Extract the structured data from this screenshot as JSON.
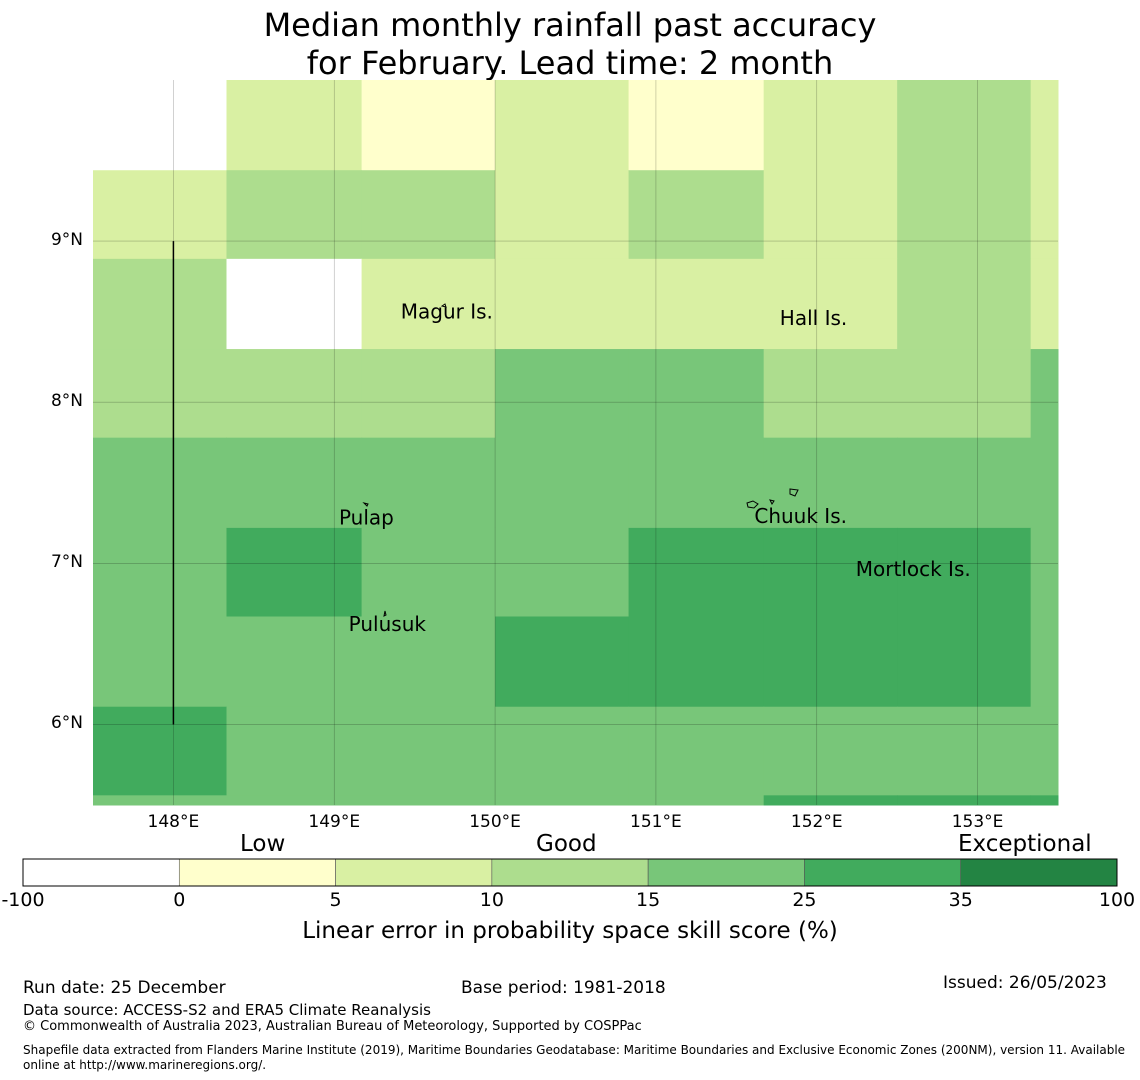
{
  "title": {
    "line1": "Median monthly rainfall past accuracy",
    "line2": "for February. Lead time: 2 month"
  },
  "map": {
    "lon_range": [
      147.5,
      153.5
    ],
    "lat_range": [
      5.5,
      10.0
    ],
    "lat_ticks": [
      {
        "lat": 9,
        "label": "9°N"
      },
      {
        "lat": 8,
        "label": "8°N"
      },
      {
        "lat": 7,
        "label": "7°N"
      },
      {
        "lat": 6,
        "label": "6°N"
      }
    ],
    "lon_ticks": [
      {
        "lon": 148,
        "label": "148°E"
      },
      {
        "lon": 149,
        "label": "149°E"
      },
      {
        "lon": 150,
        "label": "150°E"
      },
      {
        "lon": 151,
        "label": "151°E"
      },
      {
        "lon": 152,
        "label": "152°E"
      },
      {
        "lon": 153,
        "label": "153°E"
      }
    ],
    "cell_lon_edges": [
      147.5,
      148.33,
      149.17,
      150.0,
      150.83,
      151.67,
      152.5,
      153.33,
      153.5
    ],
    "cell_lat_edges": [
      10.0,
      9.44,
      8.89,
      8.33,
      7.78,
      7.22,
      6.67,
      6.11,
      5.56,
      5.5
    ],
    "grid_classes": [
      [
        0,
        2,
        1,
        2,
        1,
        2,
        3,
        2
      ],
      [
        2,
        3,
        3,
        2,
        3,
        2,
        3,
        2
      ],
      [
        3,
        0,
        2,
        2,
        2,
        2,
        3,
        2
      ],
      [
        3,
        3,
        3,
        4,
        4,
        3,
        3,
        4
      ],
      [
        4,
        4,
        4,
        4,
        4,
        4,
        4,
        4
      ],
      [
        4,
        5,
        4,
        4,
        5,
        5,
        5,
        4
      ],
      [
        4,
        4,
        4,
        5,
        5,
        5,
        5,
        4
      ],
      [
        5,
        4,
        4,
        4,
        4,
        4,
        4,
        4
      ],
      [
        4,
        4,
        4,
        4,
        4,
        5,
        5,
        5
      ]
    ],
    "vertical_line": {
      "lon": 148.0,
      "lat_from": 6.0,
      "lat_to": 9.0
    },
    "places": [
      {
        "name": "Magur Is.",
        "lon": 149.7,
        "lat": 8.52
      },
      {
        "name": "Hall Is.",
        "lon": 151.98,
        "lat": 8.48
      },
      {
        "name": "Pulap",
        "lon": 149.2,
        "lat": 7.24
      },
      {
        "name": "Chuuk Is.",
        "lon": 151.9,
        "lat": 7.25
      },
      {
        "name": "Mortlock Is.",
        "lon": 152.6,
        "lat": 6.92
      },
      {
        "name": "Pulusuk",
        "lon": 149.33,
        "lat": 6.58
      }
    ]
  },
  "colorbar": {
    "categories": [
      "Low",
      "Good",
      "Exceptional"
    ],
    "ticks": [
      "-100",
      "0",
      "5",
      "10",
      "15",
      "25",
      "35",
      "100"
    ],
    "colors": [
      "#ffffff",
      "#ffffcc",
      "#d9f0a3",
      "#addd8e",
      "#78c679",
      "#41ab5d",
      "#238443"
    ],
    "label": "Linear error in probability space skill score (%)"
  },
  "footer": {
    "run_date": "Run date: 25 December",
    "base_period": "Base period: 1981-2018",
    "issued": "Issued: 26/05/2023",
    "data_source": "Data source: ACCESS-S2 and ERA5 Climate Reanalysis",
    "copyright": "© Commonwealth of Australia 2023, Australian Bureau of Meteorology, Supported by COSPPac",
    "shapefile_line1": "Shapefile data extracted from Flanders Marine Institute (2019), Maritime Boundaries Geodatabase: Maritime Boundaries and Exclusive Economic Zones (200NM), version 11. Available",
    "shapefile_line2": "online at http://www.marineregions.org/."
  }
}
